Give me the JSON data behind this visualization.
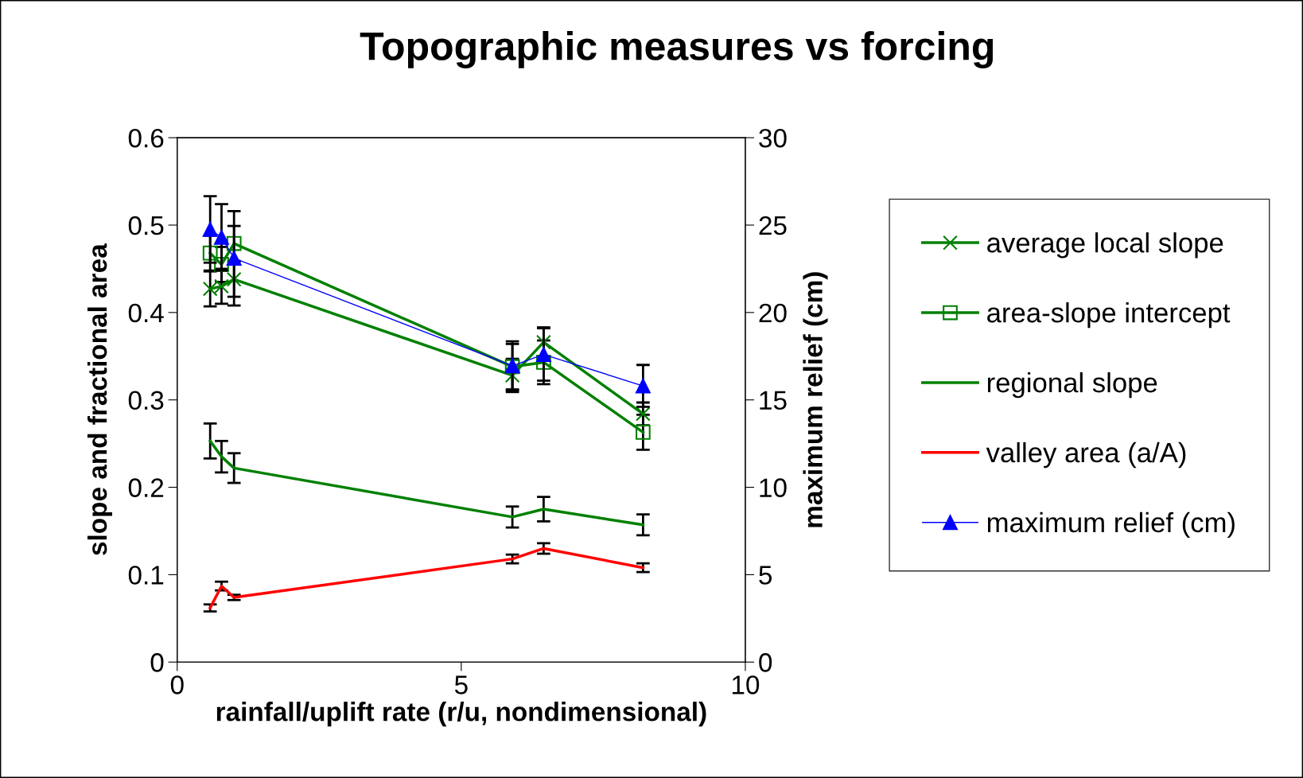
{
  "chart_data": {
    "type": "line",
    "title": "Topographic measures vs forcing",
    "xlabel": "rainfall/uplift rate (r/u, nondimensional)",
    "ylabel": "slope and fractional area",
    "y2label": "maximum relief (cm)",
    "xlim": [
      0,
      10
    ],
    "xticks": [
      0,
      5,
      10
    ],
    "ylim": [
      0,
      0.6
    ],
    "yticks": [
      0,
      0.1,
      0.2,
      0.3,
      0.4,
      0.5,
      0.6
    ],
    "y2lim": [
      0,
      30
    ],
    "y2ticks": [
      0,
      5,
      10,
      15,
      20,
      25,
      30
    ],
    "x": [
      0.58,
      0.78,
      1.0,
      5.9,
      6.45,
      8.2
    ],
    "grid": false,
    "legend": "right",
    "line_style": "solid",
    "series": [
      {
        "name": "average local slope",
        "color": "#008000",
        "marker": "cross",
        "values": [
          0.427,
          0.43,
          0.438,
          0.328,
          0.366,
          0.284
        ],
        "errors": [
          0.02,
          0.02,
          0.02,
          0.019,
          0.017,
          0.013
        ]
      },
      {
        "name": "area-slope intercept",
        "color": "#008000",
        "marker": "square",
        "values": [
          0.468,
          0.455,
          0.479,
          0.338,
          0.343,
          0.263
        ],
        "errors": [
          0.02,
          0.02,
          0.02,
          0.026,
          0.025,
          0.02
        ]
      },
      {
        "name": "regional slope",
        "color": "#008000",
        "marker": "none",
        "values": [
          0.253,
          0.235,
          0.222,
          0.166,
          0.175,
          0.157
        ],
        "errors": [
          0.02,
          0.018,
          0.017,
          0.012,
          0.014,
          0.012
        ]
      },
      {
        "name": "valley area (a/A)",
        "color": "#ff0000",
        "marker": "none",
        "values": [
          0.062,
          0.087,
          0.074,
          0.118,
          0.13,
          0.108
        ],
        "errors": [
          0.004,
          0.005,
          0.003,
          0.005,
          0.006,
          0.005
        ]
      },
      {
        "name": "maximum relief (cm)",
        "color": "#0000ff",
        "marker": "triangle",
        "axis": "y2",
        "values": [
          24.75,
          24.3,
          23.1,
          16.95,
          17.6,
          15.8
        ],
        "errors": [
          1.9,
          1.9,
          2.7,
          1.4,
          1.5,
          1.2
        ]
      }
    ]
  }
}
